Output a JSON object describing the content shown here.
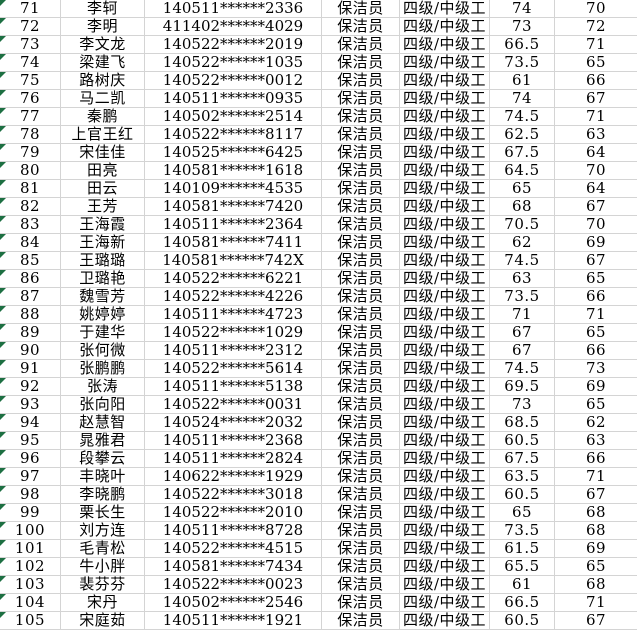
{
  "app": {
    "kind": "spreadsheet-fragment",
    "visible_row_range": "71-105"
  },
  "colors": {
    "background": "#ffffff",
    "gridline": "#d4d4d4",
    "text": "#000000",
    "error_indicator_green": "#1d6f42"
  },
  "table": {
    "columns": [
      {
        "key": "row_no",
        "name": "sequence-number"
      },
      {
        "key": "name",
        "name": "person-name"
      },
      {
        "key": "id_masked",
        "name": "masked-id-number"
      },
      {
        "key": "position",
        "name": "job-title"
      },
      {
        "key": "level",
        "name": "skill-level"
      },
      {
        "key": "score1",
        "name": "score-1"
      },
      {
        "key": "score2",
        "name": "score-2"
      }
    ],
    "error_indicator_on_every_row": true,
    "rows": [
      [
        "71",
        "李轲",
        "140511******2336",
        "保洁员",
        "四级/中级工",
        "74",
        "70"
      ],
      [
        "72",
        "李明",
        "411402******4029",
        "保洁员",
        "四级/中级工",
        "73",
        "72"
      ],
      [
        "73",
        "李文龙",
        "140522******2019",
        "保洁员",
        "四级/中级工",
        "66.5",
        "71"
      ],
      [
        "74",
        "梁建飞",
        "140522******1035",
        "保洁员",
        "四级/中级工",
        "73.5",
        "65"
      ],
      [
        "75",
        "路树庆",
        "140522******0012",
        "保洁员",
        "四级/中级工",
        "61",
        "66"
      ],
      [
        "76",
        "马二凯",
        "140511******0935",
        "保洁员",
        "四级/中级工",
        "74",
        "67"
      ],
      [
        "77",
        "秦鹏",
        "140502******2514",
        "保洁员",
        "四级/中级工",
        "74.5",
        "71"
      ],
      [
        "78",
        "上官王红",
        "140522******8117",
        "保洁员",
        "四级/中级工",
        "62.5",
        "63"
      ],
      [
        "79",
        "宋佳佳",
        "140525******6425",
        "保洁员",
        "四级/中级工",
        "67.5",
        "64"
      ],
      [
        "80",
        "田亮",
        "140581******1618",
        "保洁员",
        "四级/中级工",
        "64.5",
        "70"
      ],
      [
        "81",
        "田云",
        "140109******4535",
        "保洁员",
        "四级/中级工",
        "65",
        "64"
      ],
      [
        "82",
        "王芳",
        "140581******7420",
        "保洁员",
        "四级/中级工",
        "68",
        "67"
      ],
      [
        "83",
        "王海霞",
        "140511******2364",
        "保洁员",
        "四级/中级工",
        "70.5",
        "70"
      ],
      [
        "84",
        "王海新",
        "140581******7411",
        "保洁员",
        "四级/中级工",
        "62",
        "69"
      ],
      [
        "85",
        "王璐璐",
        "140581******742X",
        "保洁员",
        "四级/中级工",
        "74.5",
        "67"
      ],
      [
        "86",
        "卫璐艳",
        "140522******6221",
        "保洁员",
        "四级/中级工",
        "63",
        "65"
      ],
      [
        "87",
        "魏雪芳",
        "140522******4226",
        "保洁员",
        "四级/中级工",
        "73.5",
        "66"
      ],
      [
        "88",
        "姚婷婷",
        "140511******4723",
        "保洁员",
        "四级/中级工",
        "71",
        "71"
      ],
      [
        "89",
        "于建华",
        "140522******1029",
        "保洁员",
        "四级/中级工",
        "67",
        "65"
      ],
      [
        "90",
        "张何微",
        "140511******2312",
        "保洁员",
        "四级/中级工",
        "67",
        "66"
      ],
      [
        "91",
        "张鹏鹏",
        "140522******5614",
        "保洁员",
        "四级/中级工",
        "74.5",
        "73"
      ],
      [
        "92",
        "张涛",
        "140511******5138",
        "保洁员",
        "四级/中级工",
        "69.5",
        "69"
      ],
      [
        "93",
        "张向阳",
        "140522******0031",
        "保洁员",
        "四级/中级工",
        "73",
        "65"
      ],
      [
        "94",
        "赵慧智",
        "140524******2032",
        "保洁员",
        "四级/中级工",
        "68.5",
        "62"
      ],
      [
        "95",
        "晁雅君",
        "140511******2368",
        "保洁员",
        "四级/中级工",
        "60.5",
        "63"
      ],
      [
        "96",
        "段攀云",
        "140511******2824",
        "保洁员",
        "四级/中级工",
        "67.5",
        "66"
      ],
      [
        "97",
        "丰晓叶",
        "140622******1929",
        "保洁员",
        "四级/中级工",
        "63.5",
        "71"
      ],
      [
        "98",
        "李晓鹏",
        "140522******3018",
        "保洁员",
        "四级/中级工",
        "60.5",
        "67"
      ],
      [
        "99",
        "栗长生",
        "140522******2010",
        "保洁员",
        "四级/中级工",
        "65",
        "68"
      ],
      [
        "100",
        "刘方连",
        "140511******8728",
        "保洁员",
        "四级/中级工",
        "73.5",
        "68"
      ],
      [
        "101",
        "毛青松",
        "140522******4515",
        "保洁员",
        "四级/中级工",
        "61.5",
        "69"
      ],
      [
        "102",
        "牛小胖",
        "140581******7434",
        "保洁员",
        "四级/中级工",
        "65.5",
        "65"
      ],
      [
        "103",
        "裴芬芬",
        "140522******0023",
        "保洁员",
        "四级/中级工",
        "61",
        "68"
      ],
      [
        "104",
        "宋丹",
        "140502******2546",
        "保洁员",
        "四级/中级工",
        "66.5",
        "71"
      ],
      [
        "105",
        "宋庭茹",
        "140511******1921",
        "保洁员",
        "四级/中级工",
        "60.5",
        "67"
      ]
    ]
  }
}
